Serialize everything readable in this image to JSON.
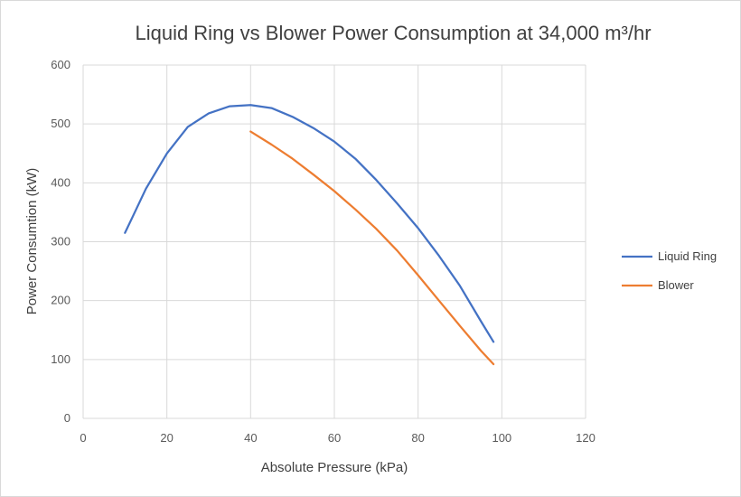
{
  "chart_data": {
    "type": "line",
    "title": "Liquid Ring  vs Blower Power Consumption  at 34,000 m³/hr",
    "xlabel": "Absolute Pressure (kPa)",
    "ylabel": "Power Consumtion (kW)",
    "xlim": [
      0,
      120
    ],
    "ylim": [
      0,
      600
    ],
    "xticks": [
      0,
      20,
      40,
      60,
      80,
      100,
      120
    ],
    "yticks": [
      0,
      100,
      200,
      300,
      400,
      500,
      600
    ],
    "grid": true,
    "legend_position": "right",
    "series": [
      {
        "name": "Liquid Ring",
        "color": "#4472c4",
        "x": [
          10,
          12,
          15,
          20,
          25,
          30,
          35,
          40,
          45,
          50,
          55,
          60,
          65,
          70,
          75,
          80,
          85,
          90,
          95,
          98
        ],
        "y": [
          315,
          345,
          390,
          450,
          495,
          518,
          530,
          532,
          527,
          512,
          493,
          470,
          441,
          405,
          365,
          323,
          276,
          225,
          165,
          130
        ]
      },
      {
        "name": "Blower",
        "color": "#ed7d31",
        "x": [
          40,
          45,
          50,
          55,
          60,
          65,
          70,
          75,
          80,
          85,
          90,
          95,
          98
        ],
        "y": [
          487,
          465,
          441,
          414,
          386,
          355,
          322,
          285,
          243,
          200,
          157,
          115,
          92
        ]
      }
    ]
  }
}
